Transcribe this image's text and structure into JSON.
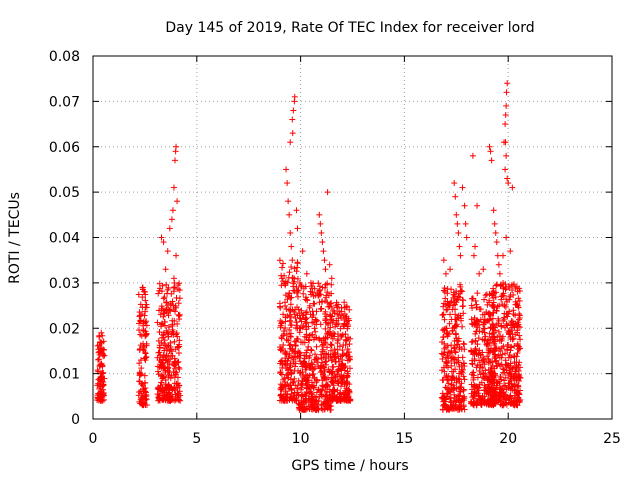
{
  "chart_data": {
    "type": "scatter",
    "title": "Day 145 of 2019, Rate Of TEC Index for receiver lord",
    "xlabel": "GPS time / hours",
    "ylabel": "ROTI / TECUs",
    "xlim": [
      0,
      25
    ],
    "ylim": [
      0,
      0.08
    ],
    "x_ticks": [
      0,
      5,
      10,
      15,
      20,
      25
    ],
    "x_tick_labels": [
      "0",
      "5",
      "10",
      "15",
      "20",
      "25"
    ],
    "y_ticks": [
      0,
      0.01,
      0.02,
      0.03,
      0.04,
      0.05,
      0.06,
      0.07,
      0.08
    ],
    "y_tick_labels": [
      "0",
      "0.01",
      "0.02",
      "0.03",
      "0.04",
      "0.05",
      "0.06",
      "0.07",
      "0.08"
    ],
    "grid": true,
    "marker": "+",
    "color": "#ff0000",
    "clusters": [
      {
        "x": [
          0.2,
          0.55
        ],
        "y": [
          0.004,
          0.019
        ]
      },
      {
        "x": [
          2.2,
          2.6
        ],
        "y": [
          0.003,
          0.029
        ]
      },
      {
        "x": [
          3.1,
          4.2
        ],
        "y": [
          0.004,
          0.03
        ]
      },
      {
        "x": [
          9.0,
          9.9
        ],
        "y": [
          0.004,
          0.035
        ]
      },
      {
        "x": [
          9.9,
          11.5
        ],
        "y": [
          0.002,
          0.03
        ]
      },
      {
        "x": [
          11.5,
          12.4
        ],
        "y": [
          0.004,
          0.026
        ]
      },
      {
        "x": [
          16.8,
          17.9
        ],
        "y": [
          0.002,
          0.03
        ]
      },
      {
        "x": [
          18.2,
          19.4
        ],
        "y": [
          0.003,
          0.028
        ]
      },
      {
        "x": [
          19.2,
          20.6
        ],
        "y": [
          0.003,
          0.03
        ]
      }
    ],
    "points": [
      [
        0.4,
        0.019
      ],
      [
        0.35,
        0.017
      ],
      [
        2.4,
        0.029
      ],
      [
        2.5,
        0.028
      ],
      [
        3.3,
        0.04
      ],
      [
        3.4,
        0.039
      ],
      [
        3.5,
        0.033
      ],
      [
        3.6,
        0.037
      ],
      [
        3.7,
        0.042
      ],
      [
        3.8,
        0.044
      ],
      [
        3.85,
        0.046
      ],
      [
        3.9,
        0.051
      ],
      [
        3.95,
        0.057
      ],
      [
        3.98,
        0.059
      ],
      [
        4.0,
        0.06
      ],
      [
        4.05,
        0.048
      ],
      [
        4.0,
        0.036
      ],
      [
        3.9,
        0.031
      ],
      [
        9.3,
        0.055
      ],
      [
        9.35,
        0.052
      ],
      [
        9.4,
        0.048
      ],
      [
        9.45,
        0.045
      ],
      [
        9.5,
        0.041
      ],
      [
        9.55,
        0.038
      ],
      [
        9.6,
        0.035
      ],
      [
        9.5,
        0.061
      ],
      [
        9.6,
        0.066
      ],
      [
        9.65,
        0.068
      ],
      [
        9.7,
        0.07
      ],
      [
        9.72,
        0.071
      ],
      [
        9.62,
        0.063
      ],
      [
        9.8,
        0.046
      ],
      [
        9.85,
        0.042
      ],
      [
        10.1,
        0.037
      ],
      [
        10.3,
        0.032
      ],
      [
        10.5,
        0.03
      ],
      [
        10.9,
        0.045
      ],
      [
        10.95,
        0.043
      ],
      [
        11.0,
        0.041
      ],
      [
        11.05,
        0.039
      ],
      [
        11.1,
        0.037
      ],
      [
        11.15,
        0.035
      ],
      [
        11.2,
        0.033
      ],
      [
        11.3,
        0.05
      ],
      [
        11.4,
        0.034
      ],
      [
        11.5,
        0.031
      ],
      [
        16.9,
        0.035
      ],
      [
        17.0,
        0.032
      ],
      [
        17.2,
        0.033
      ],
      [
        17.4,
        0.052
      ],
      [
        17.45,
        0.049
      ],
      [
        17.5,
        0.045
      ],
      [
        17.55,
        0.043
      ],
      [
        17.6,
        0.041
      ],
      [
        17.65,
        0.038
      ],
      [
        17.7,
        0.036
      ],
      [
        17.8,
        0.051
      ],
      [
        17.9,
        0.047
      ],
      [
        17.95,
        0.043
      ],
      [
        18.0,
        0.04
      ],
      [
        18.3,
        0.058
      ],
      [
        18.5,
        0.047
      ],
      [
        18.4,
        0.038
      ],
      [
        18.35,
        0.036
      ],
      [
        18.6,
        0.032
      ],
      [
        18.8,
        0.033
      ],
      [
        19.1,
        0.06
      ],
      [
        19.15,
        0.059
      ],
      [
        19.2,
        0.057
      ],
      [
        19.3,
        0.046
      ],
      [
        19.35,
        0.043
      ],
      [
        19.4,
        0.041
      ],
      [
        19.45,
        0.039
      ],
      [
        19.5,
        0.036
      ],
      [
        19.55,
        0.034
      ],
      [
        19.6,
        0.032
      ],
      [
        19.8,
        0.061
      ],
      [
        19.85,
        0.055
      ],
      [
        19.9,
        0.058
      ],
      [
        19.95,
        0.053
      ],
      [
        19.85,
        0.065
      ],
      [
        19.9,
        0.069
      ],
      [
        19.88,
        0.067
      ],
      [
        19.92,
        0.072
      ],
      [
        19.95,
        0.074
      ],
      [
        19.87,
        0.061
      ],
      [
        20.0,
        0.052
      ],
      [
        20.2,
        0.051
      ],
      [
        20.1,
        0.037
      ],
      [
        19.9,
        0.04
      ],
      [
        19.75,
        0.036
      ]
    ]
  }
}
